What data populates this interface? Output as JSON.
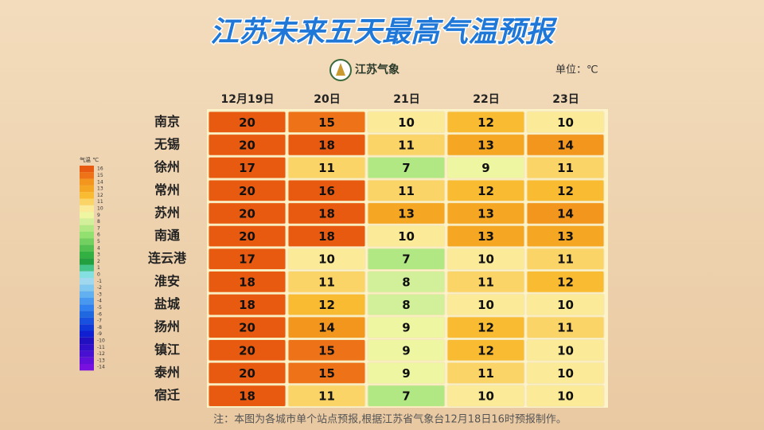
{
  "header": {
    "title": "江苏未来五天最高气温预报",
    "logo_text": "江苏气象",
    "unit": "单位：℃"
  },
  "table": {
    "columns": [
      "12月19日",
      "20日",
      "21日",
      "22日",
      "23日"
    ],
    "rows": [
      {
        "city": "南京",
        "values": [
          20,
          15,
          10,
          12,
          10
        ]
      },
      {
        "city": "无锡",
        "values": [
          20,
          18,
          11,
          13,
          14
        ]
      },
      {
        "city": "徐州",
        "values": [
          17,
          11,
          7,
          9,
          11
        ]
      },
      {
        "city": "常州",
        "values": [
          20,
          16,
          11,
          12,
          12
        ]
      },
      {
        "city": "苏州",
        "values": [
          20,
          18,
          13,
          13,
          14
        ]
      },
      {
        "city": "南通",
        "values": [
          20,
          18,
          10,
          13,
          13
        ]
      },
      {
        "city": "连云港",
        "values": [
          17,
          10,
          7,
          10,
          11
        ]
      },
      {
        "city": "淮安",
        "values": [
          18,
          11,
          8,
          11,
          12
        ]
      },
      {
        "city": "盐城",
        "values": [
          18,
          12,
          8,
          10,
          10
        ]
      },
      {
        "city": "扬州",
        "values": [
          20,
          14,
          9,
          12,
          11
        ]
      },
      {
        "city": "镇江",
        "values": [
          20,
          15,
          9,
          12,
          10
        ]
      },
      {
        "city": "泰州",
        "values": [
          20,
          15,
          9,
          11,
          10
        ]
      },
      {
        "city": "宿迁",
        "values": [
          18,
          11,
          7,
          10,
          10
        ]
      }
    ]
  },
  "legend": {
    "title": "气温 ℃",
    "entries": [
      {
        "label": 16,
        "color": "#e85a10"
      },
      {
        "label": 15,
        "color": "#ee7318"
      },
      {
        "label": 14,
        "color": "#f3961e"
      },
      {
        "label": 13,
        "color": "#f5a622"
      },
      {
        "label": 12,
        "color": "#f8bb32"
      },
      {
        "label": 11,
        "color": "#fbd468"
      },
      {
        "label": 10,
        "color": "#fbeb98"
      },
      {
        "label": 9,
        "color": "#eef6a2"
      },
      {
        "label": 8,
        "color": "#d2f09a"
      },
      {
        "label": 7,
        "color": "#b2e884"
      },
      {
        "label": 6,
        "color": "#92e070"
      },
      {
        "label": 5,
        "color": "#72d060"
      },
      {
        "label": 4,
        "color": "#52c050"
      },
      {
        "label": 3,
        "color": "#32b042"
      },
      {
        "label": 2,
        "color": "#22a040"
      },
      {
        "label": 1,
        "color": "#44c488"
      },
      {
        "label": 0,
        "color": "#84e0e0"
      },
      {
        "label": -1,
        "color": "#a0d8f0"
      },
      {
        "label": -2,
        "color": "#80c8f0"
      },
      {
        "label": -3,
        "color": "#62b0f0"
      },
      {
        "label": -4,
        "color": "#4898f0"
      },
      {
        "label": -5,
        "color": "#3080f0"
      },
      {
        "label": -6,
        "color": "#2068e0"
      },
      {
        "label": -7,
        "color": "#1850e0"
      },
      {
        "label": -8,
        "color": "#1038d8"
      },
      {
        "label": -9,
        "color": "#1020d0"
      },
      {
        "label": -10,
        "color": "#2010c0"
      },
      {
        "label": -11,
        "color": "#3010c8"
      },
      {
        "label": -12,
        "color": "#4810d0"
      },
      {
        "label": -13,
        "color": "#6010d8"
      },
      {
        "label": -14,
        "color": "#7810e0"
      }
    ]
  },
  "footnote": "注：本图为各城市单个站点预报,根据江苏省气象台12月18日16时预报制作。"
}
